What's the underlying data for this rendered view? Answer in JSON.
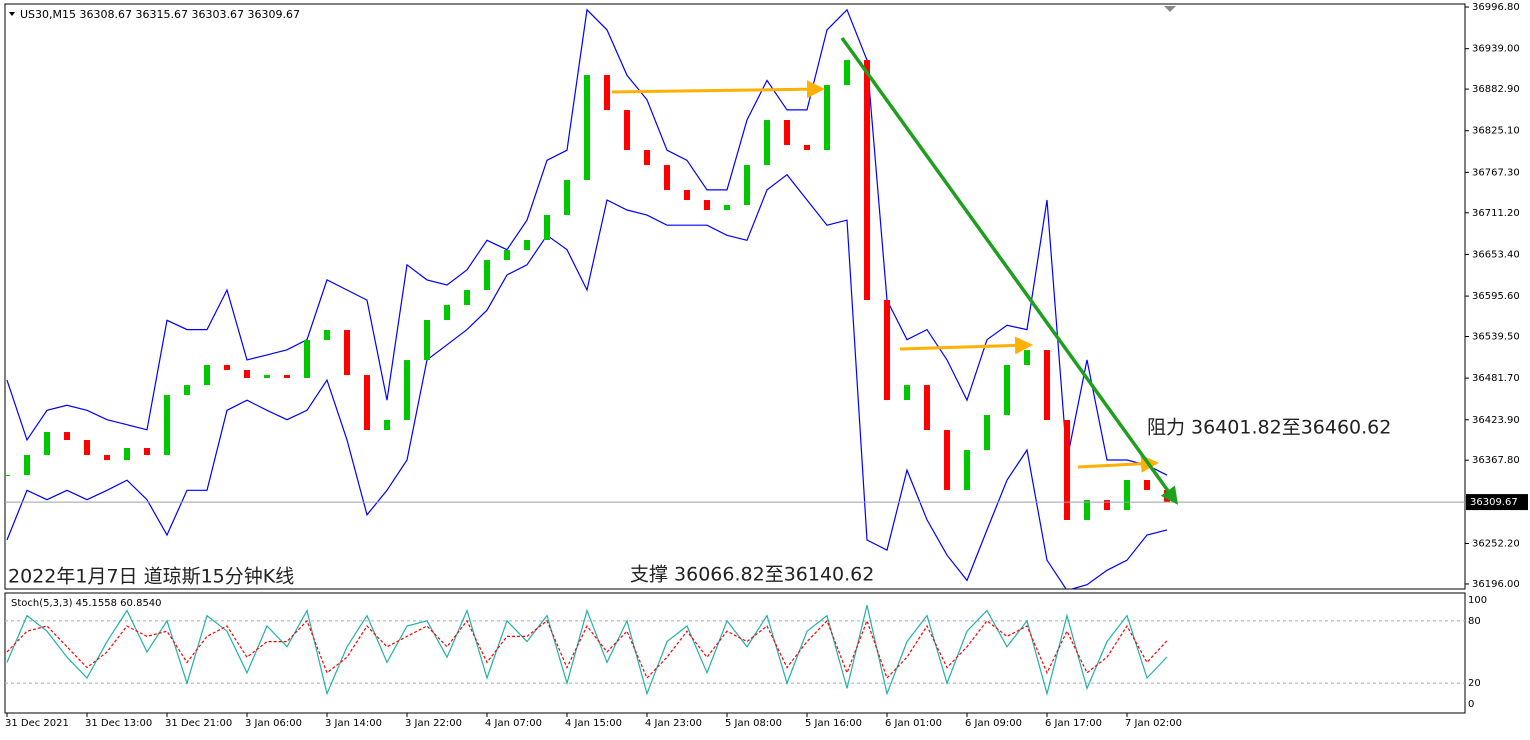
{
  "chart_data": [
    {
      "type": "candlestick",
      "title": "US30,M15  36308.67 36315.67 36303.67 36309.67",
      "annotations": [
        "2022年1月7日 道琼斯15分钟K线",
        "支撑 36066.82至36140.62",
        "阻力 36401.82至36460.62"
      ],
      "categories": [
        "31 Dec 2021",
        null,
        null,
        null,
        "31 Dec 13:00",
        null,
        null,
        null,
        "31 Dec 21:00",
        null,
        null,
        null,
        "3 Jan 06:00",
        null,
        null,
        null,
        "3 Jan 14:00",
        null,
        null,
        null,
        "3 Jan 22:00",
        null,
        null,
        null,
        "4 Jan 07:00",
        null,
        null,
        null,
        "4 Jan 15:00",
        null,
        null,
        null,
        "4 Jan 23:00",
        null,
        null,
        null,
        "5 Jan 08:00",
        null,
        null,
        null,
        "5 Jan 16:00",
        null,
        null,
        null,
        "6 Jan 01:00",
        null,
        null,
        null,
        "6 Jan 09:00",
        null,
        null,
        null,
        "6 Jan 17:00",
        null,
        null,
        null,
        "7 Jan 02:00",
        null,
        null
      ],
      "values": [
        36347.2,
        36375.0,
        36406.9,
        36395.8,
        36375.0,
        36368.0,
        36384.7,
        36375.0,
        36458.3,
        36472.1,
        36499.9,
        36493.0,
        36481.9,
        36486.0,
        36481.9,
        36534.6,
        36548.5,
        36486.0,
        36409.7,
        36423.6,
        36506.8,
        36562.4,
        36583.2,
        36604.0,
        36645.6,
        36659.5,
        36673.4,
        36708.1,
        36756.7,
        36902.4,
        36853.8,
        36798.3,
        36777.5,
        36742.8,
        36728.9,
        36715.0,
        36722.0,
        36777.5,
        36840.0,
        36805.3,
        36798.3,
        36888.5,
        36923.2,
        36590.1,
        36451.3,
        36472.1,
        36409.7,
        36326.4,
        36381.9,
        36430.5,
        36499.9,
        36520.7,
        36423.6,
        36284.8,
        36312.5,
        36298.6,
        36340.3,
        36326.4,
        36309.67
      ],
      "upper_band": [
        36479,
        36396,
        36437,
        36444,
        36437,
        36424,
        36417,
        36410,
        36562,
        36549,
        36549,
        36604,
        36507,
        36514,
        36521,
        36535,
        36618,
        36604,
        36590,
        36451,
        36639,
        36618,
        36611,
        36632,
        36673,
        36660,
        36701,
        36784,
        36798,
        36993,
        36965,
        36902,
        36868,
        36798,
        36784,
        36743,
        36743,
        36840,
        36895,
        36854,
        36854,
        36965,
        36993,
        36923,
        36590,
        36535,
        36549,
        36507,
        36451,
        36535,
        36555,
        36549,
        36729,
        36368,
        36507,
        36368,
        36368,
        36361,
        36347
      ],
      "lower_band": [
        36257,
        36326,
        36313,
        36326,
        36313,
        36326,
        36340,
        36313,
        36264,
        36326,
        36326,
        36437,
        36451,
        36437,
        36424,
        36437,
        36479,
        36396,
        36292,
        36326,
        36368,
        36507,
        36528,
        36549,
        36576,
        36625,
        36639,
        36680,
        36660,
        36604,
        36729,
        36715,
        36708,
        36694,
        36694,
        36694,
        36680,
        36673,
        36743,
        36764,
        36729,
        36694,
        36701,
        36257,
        36243,
        36354,
        36285,
        36236,
        36201,
        36271,
        36340,
        36382,
        36229,
        36187,
        36195,
        36215,
        36229,
        36264,
        36271
      ],
      "current_price": 36309.67,
      "ylim": [
        36190.4,
        36999.6
      ],
      "yticks": [
        {
          "value": 36996.8,
          "label": "36996.80"
        },
        {
          "value": 36939.0,
          "label": "36939.00"
        },
        {
          "value": 36882.9,
          "label": "36882.90"
        },
        {
          "value": 36825.1,
          "label": "36825.10"
        },
        {
          "value": 36767.3,
          "label": "36767.30"
        },
        {
          "value": 36711.2,
          "label": "36711.20"
        },
        {
          "value": 36653.4,
          "label": "36653.40"
        },
        {
          "value": 36595.6,
          "label": "36595.60"
        },
        {
          "value": 36539.5,
          "label": "36539.50"
        },
        {
          "value": 36481.7,
          "label": "36481.70"
        },
        {
          "value": 36423.9,
          "label": "36423.90"
        },
        {
          "value": 36367.8,
          "label": "36367.80"
        },
        {
          "value": 36252.2,
          "label": "36252.20"
        },
        {
          "value": 36196.0,
          "label": "36196.00"
        }
      ],
      "colors": {
        "up": "#00c800",
        "down": "#ff0000",
        "band": "#0000ff",
        "current": "#9aa0a6"
      }
    },
    {
      "type": "line",
      "title": "Stoch(5,3,3) 45.1558 60.8540",
      "k_values": [
        40,
        85,
        70,
        45,
        25,
        60,
        90,
        50,
        80,
        20,
        85,
        70,
        30,
        75,
        55,
        90,
        10,
        55,
        85,
        40,
        75,
        80,
        45,
        90,
        25,
        80,
        60,
        85,
        20,
        90,
        40,
        80,
        10,
        60,
        75,
        30,
        80,
        55,
        85,
        20,
        70,
        85,
        15,
        95,
        10,
        60,
        85,
        20,
        70,
        90,
        55,
        80,
        10,
        85,
        15,
        60,
        85,
        25,
        45.1558
      ],
      "d_values": [
        50,
        70,
        75,
        55,
        35,
        50,
        75,
        65,
        70,
        40,
        65,
        75,
        45,
        60,
        60,
        80,
        30,
        45,
        75,
        55,
        65,
        75,
        55,
        80,
        40,
        65,
        65,
        80,
        35,
        75,
        50,
        70,
        25,
        45,
        70,
        45,
        70,
        60,
        75,
        35,
        60,
        80,
        30,
        80,
        25,
        45,
        75,
        35,
        55,
        80,
        65,
        75,
        30,
        70,
        30,
        45,
        75,
        40,
        60.854
      ],
      "ylim": [
        -8.7,
        106.8
      ],
      "yticks": [
        100,
        80,
        20,
        0
      ],
      "colors": {
        "k": "#20b2aa",
        "d": "#ff0000"
      }
    }
  ]
}
